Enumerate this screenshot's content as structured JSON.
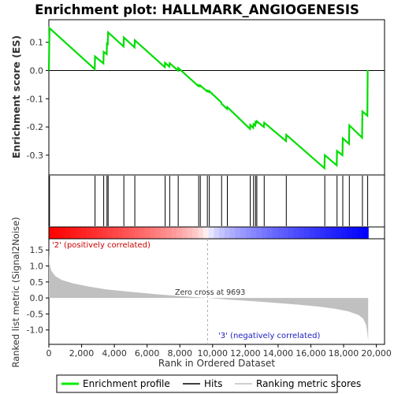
{
  "title": "Enrichment plot: HALLMARK_ANGIOGENESIS",
  "es_panel": {
    "ylabel": "Enrichment score (ES)",
    "yticks": [
      "0.1",
      "0.0",
      "-0.1",
      "-0.2",
      "-0.3"
    ]
  },
  "metric_panel": {
    "ylabel": "Ranked list metric (Signal2Noise)",
    "yticks": [
      "1.5",
      "1.0",
      "0.5",
      "0.0",
      "-0.5",
      "-1.0"
    ],
    "xlabel": "Rank in Ordered Dataset",
    "xticks": [
      "0",
      "2,000",
      "4,000",
      "6,000",
      "8,000",
      "10,000",
      "12,000",
      "14,000",
      "16,000",
      "18,000",
      "20,000"
    ],
    "pos_label": "'2' (positively correlated)",
    "neg_label": "'3' (negatively correlated)",
    "zero_label": "Zero cross at 9693"
  },
  "legend": {
    "items": [
      {
        "label": "Enrichment profile",
        "color": "#00ee00"
      },
      {
        "label": "Hits",
        "color": "#000000"
      },
      {
        "label": "Ranking metric scores",
        "color": "#c0c0c0"
      }
    ]
  },
  "chart_data": {
    "type": "line",
    "title": "Enrichment plot: HALLMARK_ANGIOGENESIS",
    "xlabel": "Rank in Ordered Dataset",
    "ylabel": "Enrichment score (ES)",
    "xlim": [
      0,
      20500
    ],
    "es_ylim": [
      -0.37,
      0.18
    ],
    "metric_ylim": [
      -1.45,
      1.85
    ],
    "n_genes": 19500,
    "zero_cross": 9693,
    "hits": [
      40,
      2820,
      3350,
      3550,
      3620,
      4580,
      5250,
      7100,
      7380,
      7900,
      9150,
      9250,
      9680,
      9800,
      10550,
      10900,
      12300,
      12500,
      12620,
      12700,
      13150,
      14500,
      16850,
      17600,
      17950,
      18350,
      19150,
      19470
    ],
    "es_profile": [
      {
        "x": 0,
        "y": 0.0
      },
      {
        "x": 40,
        "y": 0.15
      },
      {
        "x": 2800,
        "y": 0.005
      },
      {
        "x": 2820,
        "y": 0.05
      },
      {
        "x": 3330,
        "y": 0.025
      },
      {
        "x": 3350,
        "y": 0.066
      },
      {
        "x": 3530,
        "y": 0.058
      },
      {
        "x": 3550,
        "y": 0.096
      },
      {
        "x": 3600,
        "y": 0.094
      },
      {
        "x": 3620,
        "y": 0.135
      },
      {
        "x": 4560,
        "y": 0.085
      },
      {
        "x": 4580,
        "y": 0.117
      },
      {
        "x": 5230,
        "y": 0.082
      },
      {
        "x": 5250,
        "y": 0.107
      },
      {
        "x": 7080,
        "y": 0.012
      },
      {
        "x": 7100,
        "y": 0.027
      },
      {
        "x": 7360,
        "y": 0.014
      },
      {
        "x": 7380,
        "y": 0.026
      },
      {
        "x": 7880,
        "y": 0.0
      },
      {
        "x": 7900,
        "y": 0.009
      },
      {
        "x": 9130,
        "y": -0.055
      },
      {
        "x": 9150,
        "y": -0.052
      },
      {
        "x": 9230,
        "y": -0.056
      },
      {
        "x": 9250,
        "y": -0.053
      },
      {
        "x": 9660,
        "y": -0.074
      },
      {
        "x": 9680,
        "y": -0.071
      },
      {
        "x": 9780,
        "y": -0.076
      },
      {
        "x": 9800,
        "y": -0.073
      },
      {
        "x": 10530,
        "y": -0.113
      },
      {
        "x": 10550,
        "y": -0.118
      },
      {
        "x": 10880,
        "y": -0.136
      },
      {
        "x": 10900,
        "y": -0.13
      },
      {
        "x": 12280,
        "y": -0.207
      },
      {
        "x": 12300,
        "y": -0.193
      },
      {
        "x": 12480,
        "y": -0.203
      },
      {
        "x": 12500,
        "y": -0.19
      },
      {
        "x": 12600,
        "y": -0.195
      },
      {
        "x": 12620,
        "y": -0.182
      },
      {
        "x": 12680,
        "y": -0.185
      },
      {
        "x": 12700,
        "y": -0.18
      },
      {
        "x": 13130,
        "y": -0.2
      },
      {
        "x": 13150,
        "y": -0.185
      },
      {
        "x": 14480,
        "y": -0.25
      },
      {
        "x": 14500,
        "y": -0.228
      },
      {
        "x": 16830,
        "y": -0.346
      },
      {
        "x": 16850,
        "y": -0.3
      },
      {
        "x": 17580,
        "y": -0.336
      },
      {
        "x": 17600,
        "y": -0.285
      },
      {
        "x": 17930,
        "y": -0.3
      },
      {
        "x": 17950,
        "y": -0.24
      },
      {
        "x": 18330,
        "y": -0.26
      },
      {
        "x": 18350,
        "y": -0.194
      },
      {
        "x": 19130,
        "y": -0.238
      },
      {
        "x": 19150,
        "y": -0.145
      },
      {
        "x": 19450,
        "y": -0.16
      },
      {
        "x": 19470,
        "y": 0.002
      }
    ],
    "ranked_metric": [
      {
        "x": 0,
        "y": 1.55
      },
      {
        "x": 30,
        "y": 1.1
      },
      {
        "x": 150,
        "y": 0.85
      },
      {
        "x": 400,
        "y": 0.68
      },
      {
        "x": 800,
        "y": 0.56
      },
      {
        "x": 1500,
        "y": 0.45
      },
      {
        "x": 2500,
        "y": 0.35
      },
      {
        "x": 3500,
        "y": 0.27
      },
      {
        "x": 5000,
        "y": 0.19
      },
      {
        "x": 6500,
        "y": 0.12
      },
      {
        "x": 8000,
        "y": 0.06
      },
      {
        "x": 9693,
        "y": 0.0
      },
      {
        "x": 11000,
        "y": -0.05
      },
      {
        "x": 12500,
        "y": -0.1
      },
      {
        "x": 14000,
        "y": -0.16
      },
      {
        "x": 15500,
        "y": -0.22
      },
      {
        "x": 16500,
        "y": -0.27
      },
      {
        "x": 17500,
        "y": -0.34
      },
      {
        "x": 18300,
        "y": -0.42
      },
      {
        "x": 18900,
        "y": -0.53
      },
      {
        "x": 19200,
        "y": -0.65
      },
      {
        "x": 19380,
        "y": -0.85
      },
      {
        "x": 19450,
        "y": -1.1
      },
      {
        "x": 19500,
        "y": -1.35
      }
    ]
  }
}
